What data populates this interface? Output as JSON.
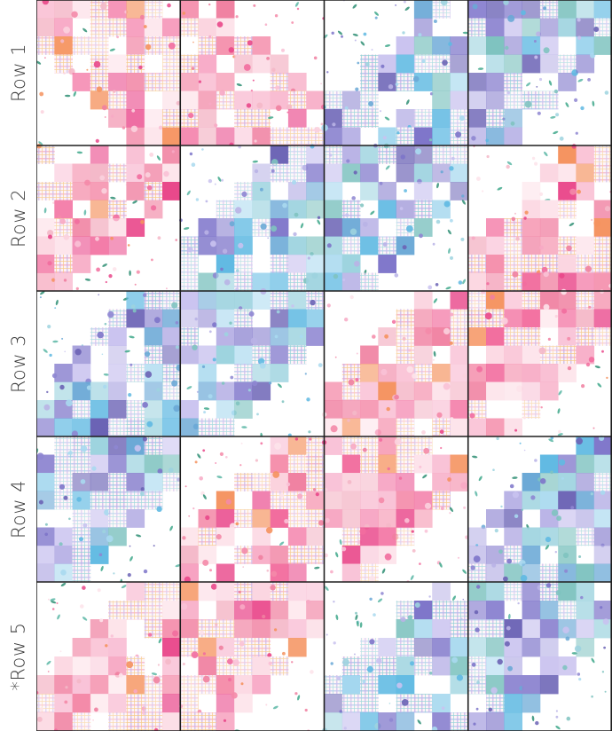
{
  "rows": [
    {
      "label": "Row 1",
      "blocks": [
        "diag-tr",
        "diag-bl",
        "diag-br",
        "diag-tl"
      ],
      "palettes": [
        "warm",
        "warm",
        "cool",
        "cool"
      ]
    },
    {
      "label": "Row 2",
      "blocks": [
        "diag-tl",
        "diag-br",
        "diag-tl",
        "diag-br"
      ],
      "palettes": [
        "warm",
        "cool",
        "cool",
        "warm"
      ]
    },
    {
      "label": "Row 3",
      "blocks": [
        "diag-br",
        "diag-tl",
        "diag-br",
        "diag-tl"
      ],
      "palettes": [
        "cool",
        "cool",
        "warm",
        "warm"
      ]
    },
    {
      "label": "Row 4",
      "blocks": [
        "diag-tl",
        "diag-br",
        "diag-tl",
        "diag-br"
      ],
      "palettes": [
        "cool",
        "warm",
        "warm",
        "cool"
      ]
    },
    {
      "label": "*Row 5",
      "blocks": [
        "diag-br",
        "diag-tl",
        "diag-br",
        "diag-tl"
      ],
      "palettes": [
        "warm",
        "warm",
        "cool",
        "cool"
      ]
    }
  ],
  "colors": {
    "warm": [
      "#f26d9e",
      "#f7a9c4",
      "#f48aa8",
      "#fbd2de",
      "#f5925e",
      "#e9478a",
      "#f9c1d6",
      "#f4b8c8",
      "#fde3ea",
      "#f07fa0"
    ],
    "cool": [
      "#6aa8d6",
      "#8e86d1",
      "#a9d9ef",
      "#6b63b5",
      "#7fc3c0",
      "#b9b3e6",
      "#5fb9e2",
      "#c9c2ef",
      "#9dd3df",
      "#7d74c9"
    ],
    "plaid_warm": [
      "#f3a3c0",
      "#c7b1e3",
      "#f7c986"
    ],
    "plaid_cool": [
      "#9eb8e8",
      "#c1a9e6",
      "#8fd0d6"
    ],
    "leaf": [
      "#3fa88b",
      "#5cb7a6",
      "#2f8f74"
    ],
    "frame": "#1e1e1e",
    "background": "#ffffff"
  }
}
